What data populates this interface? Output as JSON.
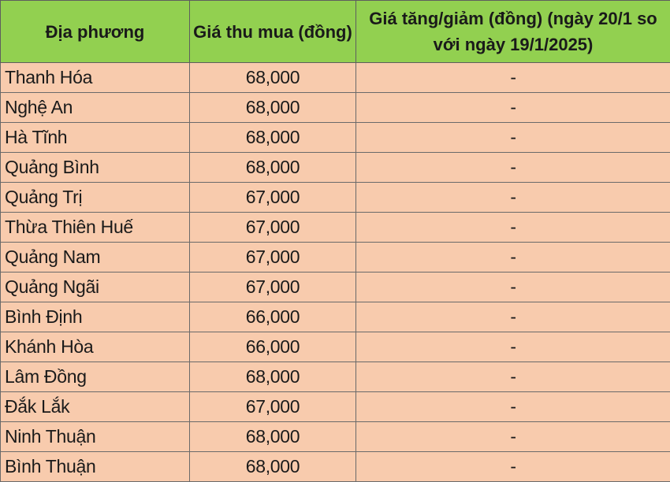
{
  "table": {
    "headers": [
      "Địa phương",
      "Giá thu mua (đồng)",
      "Giá tăng/giảm (đồng) (ngày 20/1 so với ngày 19/1/2025)"
    ],
    "rows": [
      [
        "Thanh Hóa",
        "68,000",
        "-"
      ],
      [
        "Nghệ An",
        "68,000",
        "-"
      ],
      [
        "Hà Tĩnh",
        "68,000",
        "-"
      ],
      [
        "Quảng Bình",
        "68,000",
        "-"
      ],
      [
        "Quảng Trị",
        "67,000",
        "-"
      ],
      [
        "Thừa Thiên Huế",
        "67,000",
        "-"
      ],
      [
        "Quảng Nam",
        "67,000",
        "-"
      ],
      [
        "Quảng Ngãi",
        "67,000",
        "-"
      ],
      [
        "Bình Định",
        "66,000",
        "-"
      ],
      [
        "Khánh Hòa",
        "66,000",
        "-"
      ],
      [
        "Lâm Đồng",
        "68,000",
        "-"
      ],
      [
        "Đắk Lắk",
        "67,000",
        "-"
      ],
      [
        "Ninh Thuận",
        "68,000",
        "-"
      ],
      [
        "Bình Thuận",
        "68,000",
        "-"
      ]
    ]
  },
  "colors": {
    "header_bg": "#92d050",
    "row_bg": "#f8cbad"
  }
}
